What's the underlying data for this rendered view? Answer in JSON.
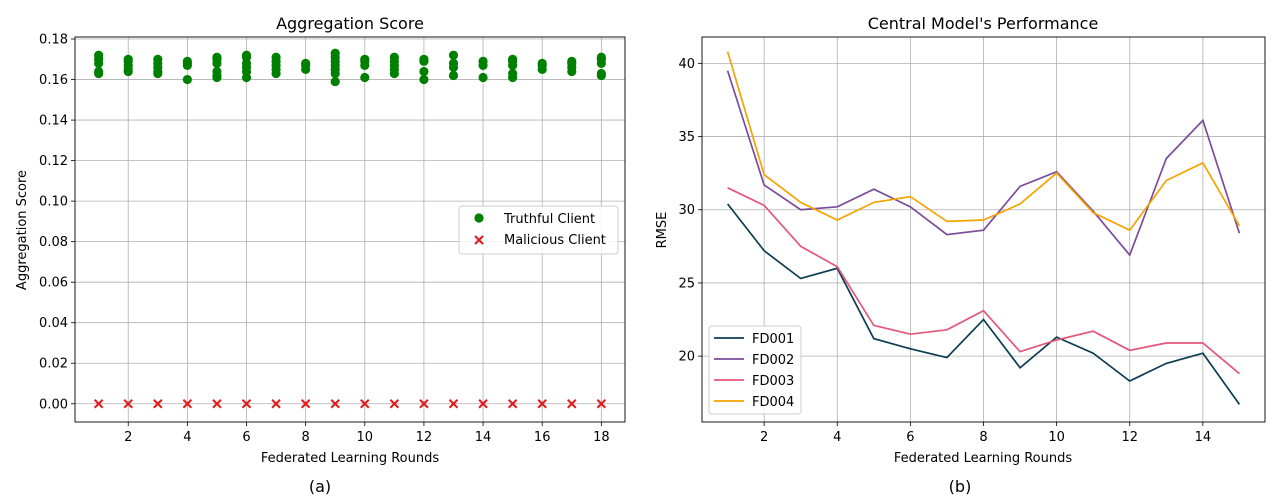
{
  "chart_data": [
    {
      "type": "scatter",
      "panel_label": "(a)",
      "title": "Aggregation Score",
      "xlabel": "Federated Learning Rounds",
      "ylabel": "Aggregation Score",
      "xlim": [
        0.2,
        18.8
      ],
      "ylim": [
        -0.009,
        0.181
      ],
      "xticks": [
        2,
        4,
        6,
        8,
        10,
        12,
        14,
        16,
        18
      ],
      "yticks": [
        0.0,
        0.02,
        0.04,
        0.06,
        0.08,
        0.1,
        0.12,
        0.14,
        0.16,
        0.18
      ],
      "grid": true,
      "legend_position": "center-right",
      "series": [
        {
          "name": "Truthful Client",
          "marker": "circle",
          "color": "#008000",
          "points": [
            [
              1,
              0.172
            ],
            [
              1,
              0.17
            ],
            [
              1,
              0.168
            ],
            [
              1,
              0.164
            ],
            [
              1,
              0.163
            ],
            [
              2,
              0.17
            ],
            [
              2,
              0.169
            ],
            [
              2,
              0.167
            ],
            [
              2,
              0.165
            ],
            [
              2,
              0.164
            ],
            [
              3,
              0.17
            ],
            [
              3,
              0.168
            ],
            [
              3,
              0.166
            ],
            [
              3,
              0.164
            ],
            [
              3,
              0.163
            ],
            [
              4,
              0.169
            ],
            [
              4,
              0.168
            ],
            [
              4,
              0.167
            ],
            [
              4,
              0.16
            ],
            [
              5,
              0.171
            ],
            [
              5,
              0.17
            ],
            [
              5,
              0.168
            ],
            [
              5,
              0.164
            ],
            [
              5,
              0.162
            ],
            [
              5,
              0.161
            ],
            [
              6,
              0.172
            ],
            [
              6,
              0.171
            ],
            [
              6,
              0.168
            ],
            [
              6,
              0.166
            ],
            [
              6,
              0.164
            ],
            [
              6,
              0.161
            ],
            [
              7,
              0.171
            ],
            [
              7,
              0.169
            ],
            [
              7,
              0.167
            ],
            [
              7,
              0.165
            ],
            [
              7,
              0.163
            ],
            [
              8,
              0.168
            ],
            [
              8,
              0.167
            ],
            [
              8,
              0.165
            ],
            [
              9,
              0.173
            ],
            [
              9,
              0.171
            ],
            [
              9,
              0.169
            ],
            [
              9,
              0.167
            ],
            [
              9,
              0.165
            ],
            [
              9,
              0.163
            ],
            [
              9,
              0.159
            ],
            [
              10,
              0.17
            ],
            [
              10,
              0.169
            ],
            [
              10,
              0.167
            ],
            [
              10,
              0.161
            ],
            [
              11,
              0.171
            ],
            [
              11,
              0.169
            ],
            [
              11,
              0.167
            ],
            [
              11,
              0.165
            ],
            [
              11,
              0.163
            ],
            [
              12,
              0.17
            ],
            [
              12,
              0.169
            ],
            [
              12,
              0.164
            ],
            [
              12,
              0.16
            ],
            [
              13,
              0.172
            ],
            [
              13,
              0.168
            ],
            [
              13,
              0.166
            ],
            [
              13,
              0.162
            ],
            [
              14,
              0.169
            ],
            [
              14,
              0.167
            ],
            [
              14,
              0.161
            ],
            [
              15,
              0.17
            ],
            [
              15,
              0.169
            ],
            [
              15,
              0.167
            ],
            [
              15,
              0.163
            ],
            [
              15,
              0.161
            ],
            [
              16,
              0.168
            ],
            [
              16,
              0.167
            ],
            [
              16,
              0.165
            ],
            [
              17,
              0.169
            ],
            [
              17,
              0.168
            ],
            [
              17,
              0.166
            ],
            [
              17,
              0.164
            ],
            [
              18,
              0.171
            ],
            [
              18,
              0.17
            ],
            [
              18,
              0.168
            ],
            [
              18,
              0.163
            ],
            [
              18,
              0.162
            ]
          ]
        },
        {
          "name": "Malicious Client",
          "marker": "x",
          "color": "#e31a1c",
          "points": [
            [
              1,
              0.0
            ],
            [
              2,
              0.0
            ],
            [
              3,
              0.0
            ],
            [
              4,
              0.0
            ],
            [
              5,
              0.0
            ],
            [
              6,
              0.0
            ],
            [
              7,
              0.0
            ],
            [
              8,
              0.0
            ],
            [
              9,
              0.0
            ],
            [
              10,
              0.0
            ],
            [
              11,
              0.0
            ],
            [
              12,
              0.0
            ],
            [
              13,
              0.0
            ],
            [
              14,
              0.0
            ],
            [
              15,
              0.0
            ],
            [
              16,
              0.0
            ],
            [
              17,
              0.0
            ],
            [
              18,
              0.0
            ]
          ]
        }
      ]
    },
    {
      "type": "line",
      "panel_label": "(b)",
      "title": "Central Model's Performance",
      "xlabel": "Federated Learning Rounds",
      "ylabel": "RMSE",
      "xlim": [
        0.3,
        15.7
      ],
      "ylim": [
        15.5,
        41.8
      ],
      "xticks": [
        2,
        4,
        6,
        8,
        10,
        12,
        14
      ],
      "yticks": [
        20,
        25,
        30,
        35,
        40
      ],
      "grid": true,
      "legend_position": "lower-left",
      "x": [
        1,
        2,
        3,
        4,
        5,
        6,
        7,
        8,
        9,
        10,
        11,
        12,
        13,
        14,
        15
      ],
      "series": [
        {
          "name": "FD001",
          "color": "#0b3d52",
          "values": [
            30.4,
            27.2,
            25.3,
            26.0,
            21.2,
            20.5,
            19.9,
            22.5,
            19.2,
            21.3,
            20.2,
            18.3,
            19.5,
            20.2,
            16.7
          ]
        },
        {
          "name": "FD002",
          "color": "#7b4c9a",
          "values": [
            39.5,
            31.7,
            30.0,
            30.2,
            31.4,
            30.2,
            28.3,
            28.6,
            31.6,
            32.6,
            29.9,
            26.9,
            33.5,
            36.1,
            28.4
          ]
        },
        {
          "name": "FD003",
          "color": "#e4567a",
          "values": [
            31.5,
            30.3,
            27.5,
            26.1,
            22.1,
            21.5,
            21.8,
            23.1,
            20.3,
            21.1,
            21.7,
            20.4,
            20.9,
            20.9,
            18.8
          ]
        },
        {
          "name": "FD004",
          "color": "#f5a300",
          "values": [
            40.8,
            32.4,
            30.5,
            29.3,
            30.5,
            30.9,
            29.2,
            29.3,
            30.4,
            32.5,
            29.8,
            28.6,
            32.0,
            33.2,
            28.9
          ]
        }
      ]
    }
  ]
}
